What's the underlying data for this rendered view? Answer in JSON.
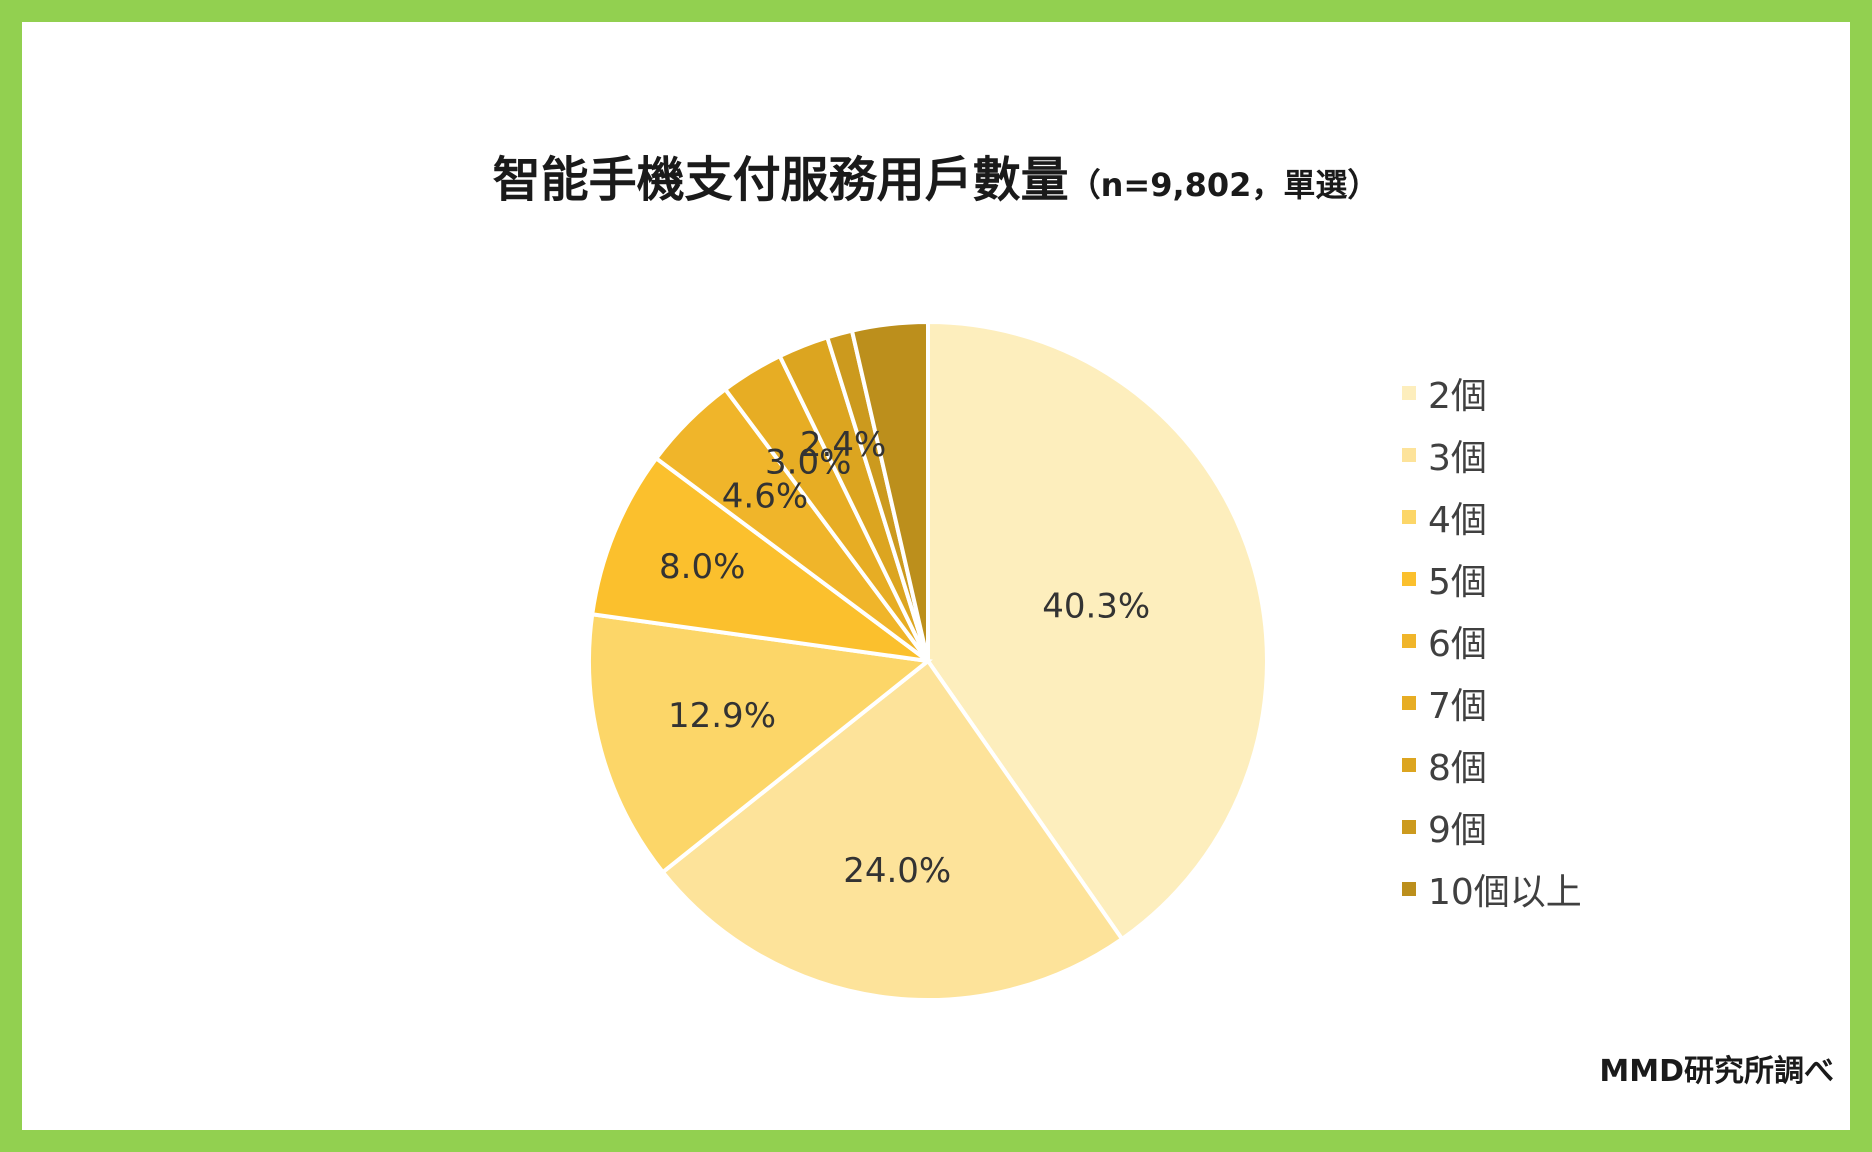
{
  "title": "智能手機支付服務用戶數量",
  "subtitle": "（n=9,802，單選）",
  "source": "MMD研究所調べ",
  "chart_data": {
    "type": "pie",
    "title": "智能手機支付服務用戶數量",
    "subtitle": "（n=9,802，單選）",
    "legend_position": "right",
    "categories": [
      "2個",
      "3個",
      "4個",
      "5個",
      "6個",
      "7個",
      "8個",
      "9個",
      "10個以上"
    ],
    "values": [
      40.3,
      24.0,
      12.9,
      8.0,
      4.6,
      3.0,
      2.4,
      1.2,
      3.6
    ],
    "data_labels": [
      "40.3%",
      "24.0%",
      "12.9%",
      "8.0%",
      "4.6%",
      "3.0%",
      "2.4%",
      "",
      ""
    ],
    "colors": [
      "#fdeebd",
      "#fde39a",
      "#fcd668",
      "#fbc02d",
      "#f0b52a",
      "#e7ad24",
      "#dca520",
      "#cc9a1e",
      "#bc8f1c"
    ]
  }
}
